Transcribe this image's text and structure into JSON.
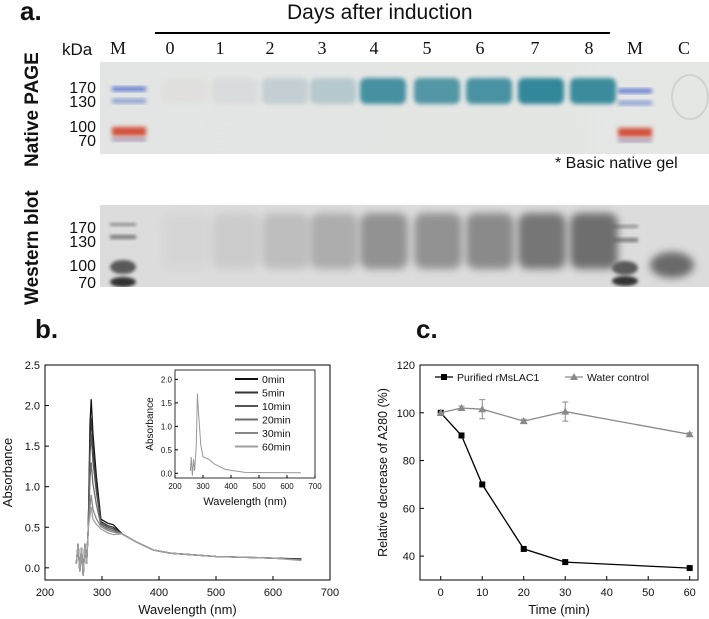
{
  "panel_a": {
    "letter": "a.",
    "title": "Days after induction",
    "kda_label": "kDa",
    "lane_labels": [
      "M",
      "0",
      "1",
      "2",
      "3",
      "4",
      "5",
      "6",
      "7",
      "8",
      "M",
      "C"
    ],
    "native_page": {
      "label": "Native PAGE",
      "markers": [
        "170",
        "130",
        "100",
        "70"
      ],
      "note": "* Basic native gel",
      "band_intensity": [
        0,
        0.05,
        0.12,
        0.28,
        0.35,
        0.85,
        0.78,
        0.82,
        0.95,
        0.9
      ]
    },
    "western_blot": {
      "label": "Western blot",
      "markers": [
        "170",
        "130",
        "100",
        "70"
      ],
      "band_intensity": [
        0,
        0.05,
        0.12,
        0.22,
        0.35,
        0.55,
        0.55,
        0.6,
        0.75,
        0.8,
        0,
        0.55
      ]
    }
  },
  "panel_b": {
    "letter": "b.",
    "main": {
      "xlabel": "Wavelength (nm)",
      "ylabel": "Absorbance",
      "xticks": [
        "200",
        "300",
        "400",
        "500",
        "600",
        "700"
      ],
      "yticks": [
        "0.0",
        "0.5",
        "1.0",
        "1.5",
        "2.0",
        "2.5"
      ],
      "xlim": [
        200,
        700
      ],
      "ylim": [
        -0.15,
        2.5
      ]
    },
    "inset": {
      "xlabel": "Wavelength (nm)",
      "ylabel": "Absorbance",
      "xticks": [
        "200",
        "300",
        "400",
        "500",
        "600",
        "700"
      ],
      "yticks": [
        "0.0",
        "0.5",
        "1.0",
        "1.5",
        "2.0"
      ],
      "legend": [
        "0min",
        "5min",
        "10min",
        "20min",
        "30min",
        "60min"
      ]
    }
  },
  "panel_c": {
    "letter": "c.",
    "chart_data": {
      "type": "line",
      "xlabel": "Time (min)",
      "ylabel": "Relative decrease of A280 (%)",
      "xlim": [
        -5,
        62
      ],
      "ylim": [
        30,
        120
      ],
      "xticks": [
        "0",
        "10",
        "20",
        "30",
        "40",
        "50",
        "60"
      ],
      "yticks": [
        "40",
        "60",
        "80",
        "100",
        "120"
      ],
      "legend_position": "top",
      "series": [
        {
          "name": "Purified rMsLAC1",
          "color": "#000000",
          "marker": "square",
          "x": [
            0,
            5,
            10,
            20,
            30,
            60
          ],
          "y": [
            100,
            90.5,
            70,
            43,
            37.5,
            35
          ]
        },
        {
          "name": "Water control",
          "color": "#8a8a8a",
          "marker": "triangle",
          "x": [
            0,
            5,
            10,
            20,
            30,
            60
          ],
          "y": [
            100,
            102,
            101.5,
            96.5,
            100.5,
            91
          ],
          "err": [
            0,
            0.8,
            4,
            0.8,
            4,
            0.6
          ]
        }
      ]
    }
  }
}
